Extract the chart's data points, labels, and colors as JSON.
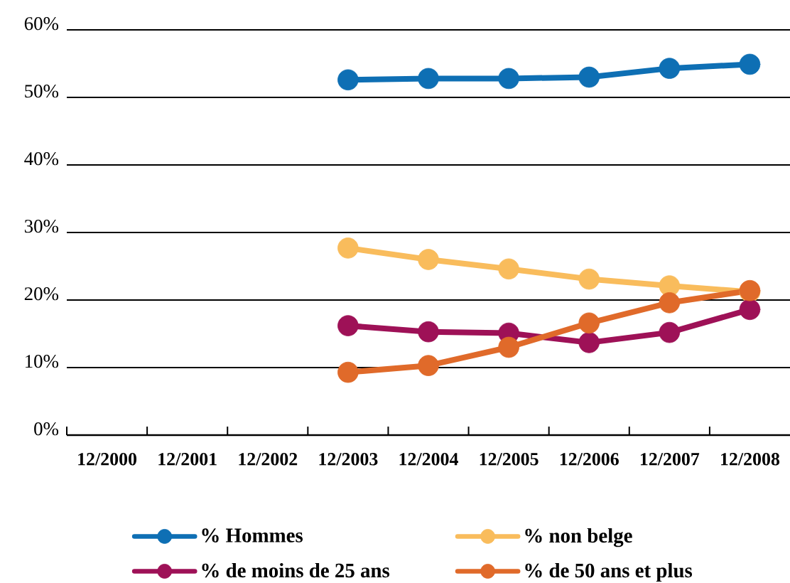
{
  "chart_data": {
    "type": "line",
    "categories": [
      "12/2000",
      "12/2001",
      "12/2002",
      "12/2003",
      "12/2004",
      "12/2005",
      "12/2006",
      "12/2007",
      "12/2008"
    ],
    "series": [
      {
        "name": "% Hommes",
        "color": "#0e6fb4",
        "values": [
          null,
          null,
          null,
          52.6,
          52.8,
          52.8,
          53.0,
          54.3,
          54.9
        ]
      },
      {
        "name": "% non belge",
        "color": "#f9bc5c",
        "values": [
          null,
          null,
          null,
          27.7,
          26.0,
          24.6,
          23.1,
          22.1,
          21.2
        ]
      },
      {
        "name": "% de moins de 25 ans",
        "color": "#9e1157",
        "values": [
          null,
          null,
          null,
          16.2,
          15.3,
          15.1,
          13.7,
          15.2,
          18.6
        ]
      },
      {
        "name": "% de 50 ans et plus",
        "color": "#e06a2a",
        "values": [
          null,
          null,
          null,
          9.3,
          10.3,
          13.0,
          16.6,
          19.6,
          21.4
        ]
      }
    ],
    "ylim": [
      0,
      60
    ],
    "yticks": [
      {
        "value": 0,
        "label": "0%"
      },
      {
        "value": 10,
        "label": "10%"
      },
      {
        "value": 20,
        "label": "20%"
      },
      {
        "value": 30,
        "label": "30%"
      },
      {
        "value": 40,
        "label": "40%"
      },
      {
        "value": 50,
        "label": "50%"
      },
      {
        "value": 60,
        "label": "60%"
      }
    ],
    "grid": "y",
    "legend": "bottom",
    "marker": "circle",
    "line_style": "solid"
  }
}
